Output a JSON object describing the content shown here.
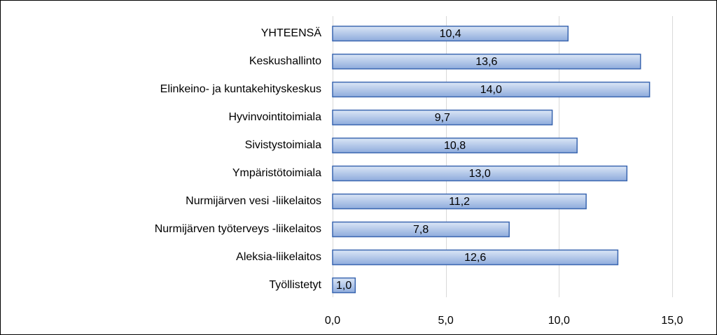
{
  "chart_data": {
    "type": "bar",
    "orientation": "horizontal",
    "categories": [
      "YHTEENSÄ",
      "Keskushallinto",
      "Elinkeino- ja kuntakehityskeskus",
      "Hyvinvointitoimiala",
      "Sivistystoimiala",
      "Ympäristötoimiala",
      "Nurmijärven vesi -liikelaitos",
      "Nurmijärven työterveys -liikelaitos",
      "Aleksia-liikelaitos",
      "Työllistetyt"
    ],
    "values": [
      10.4,
      13.6,
      14.0,
      9.7,
      10.8,
      13.0,
      11.2,
      7.8,
      12.6,
      1.0
    ],
    "data_labels": [
      "10,4",
      "13,6",
      "14,0",
      "9,7",
      "10,8",
      "13,0",
      "11,2",
      "7,8",
      "12,6",
      "1,0"
    ],
    "xlim": [
      0,
      15
    ],
    "x_ticks": [
      0,
      5,
      10,
      15
    ],
    "x_tick_labels": [
      "0,0",
      "5,0",
      "10,0",
      "15,0"
    ],
    "grid": true,
    "legend": "none",
    "bar_fill_top": "#dbe6f6",
    "bar_fill_bottom": "#8eabdc",
    "bar_stroke": "#3a66b0",
    "grid_color": "#d9d9d9"
  }
}
